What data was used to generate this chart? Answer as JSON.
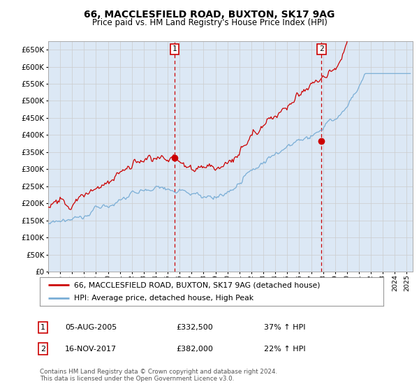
{
  "title": "66, MACCLESFIELD ROAD, BUXTON, SK17 9AG",
  "subtitle": "Price paid vs. HM Land Registry's House Price Index (HPI)",
  "ytick_values": [
    0,
    50000,
    100000,
    150000,
    200000,
    250000,
    300000,
    350000,
    400000,
    450000,
    500000,
    550000,
    600000,
    650000
  ],
  "ylim": [
    0,
    675000
  ],
  "xlim_start": 1995.0,
  "xlim_end": 2025.5,
  "sale1_date": 2005.58,
  "sale1_price": 332500,
  "sale1_label": "1",
  "sale2_date": 2017.87,
  "sale2_price": 382000,
  "sale2_label": "2",
  "red_line_color": "#cc0000",
  "blue_line_color": "#7aaed6",
  "grid_color": "#cccccc",
  "bg_color": "#dce8f5",
  "plot_bg": "#ffffff",
  "legend_label_red": "66, MACCLESFIELD ROAD, BUXTON, SK17 9AG (detached house)",
  "legend_label_blue": "HPI: Average price, detached house, High Peak",
  "sale1_col1": "05-AUG-2005",
  "sale1_col2": "£332,500",
  "sale1_col3": "37% ↑ HPI",
  "sale2_col1": "16-NOV-2017",
  "sale2_col2": "£382,000",
  "sale2_col3": "22% ↑ HPI",
  "footnote": "Contains HM Land Registry data © Crown copyright and database right 2024.\nThis data is licensed under the Open Government Licence v3.0.",
  "marker_box_color": "#cc0000"
}
